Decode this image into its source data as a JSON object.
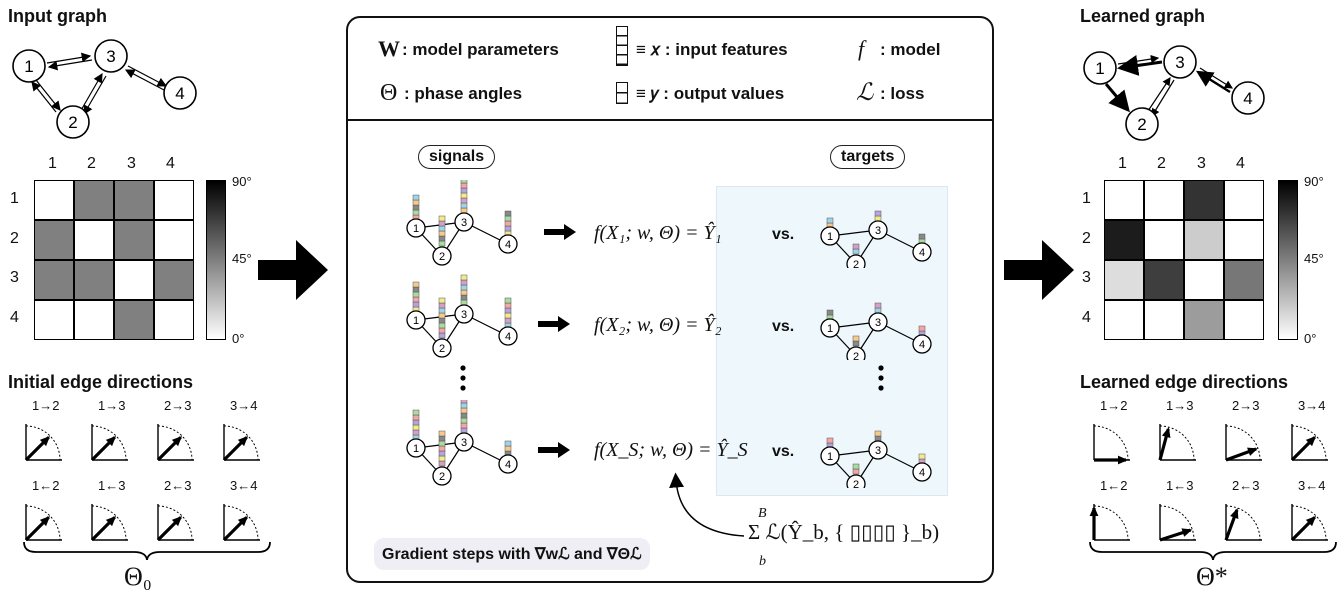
{
  "left": {
    "input_graph_title": "Input graph",
    "edges_title": "Initial edge directions",
    "theta_label": "Θ₀"
  },
  "right": {
    "learned_graph_title": "Learned graph",
    "edges_title": "Learned edge directions",
    "theta_label": "Θ*"
  },
  "node_labels": [
    "1",
    "2",
    "3",
    "4"
  ],
  "matrix_ticks": [
    "1",
    "2",
    "3",
    "4"
  ],
  "colorbar": {
    "max": "90°",
    "mid": "45°",
    "min": "0°"
  },
  "input_matrix_deg": [
    [
      0,
      45,
      45,
      0
    ],
    [
      45,
      0,
      45,
      0
    ],
    [
      45,
      45,
      0,
      45
    ],
    [
      0,
      0,
      45,
      0
    ]
  ],
  "learned_matrix_deg": [
    [
      0,
      0,
      72,
      0
    ],
    [
      80,
      0,
      18,
      0
    ],
    [
      12,
      68,
      0,
      48
    ],
    [
      0,
      0,
      35,
      0
    ]
  ],
  "initial_directions": {
    "top_labels": [
      "1→2",
      "1→3",
      "2→3",
      "3→4"
    ],
    "bottom_labels": [
      "1←2",
      "1←3",
      "2←3",
      "3←4"
    ],
    "top_angles_deg": [
      45,
      45,
      45,
      45
    ],
    "bottom_angles_deg": [
      45,
      45,
      45,
      45
    ]
  },
  "learned_directions": {
    "top_labels": [
      "1→2",
      "1→3",
      "2→3",
      "3→4"
    ],
    "bottom_labels": [
      "1←2",
      "1←3",
      "2←3",
      "3←4"
    ],
    "top_angles_deg": [
      0,
      75,
      20,
      45
    ],
    "bottom_angles_deg": [
      90,
      18,
      70,
      45
    ]
  },
  "legend": {
    "w_symbol": "W",
    "w_text": ": model parameters",
    "x_text": "≡ 𝑥 : input features",
    "f_symbol": "f",
    "f_text": ": model",
    "theta_symbol": "Θ",
    "theta_text": ": phase angles",
    "y_text": "≡ 𝑦 : output values",
    "l_symbol": "ℒ",
    "l_text": ": loss"
  },
  "center": {
    "signals": "signals",
    "targets": "targets",
    "formulas": [
      "f(X₁; w, Θ) = Ŷ₁",
      "f(X₂; w, Θ) = Ŷ₂",
      "f(X_S; w, Θ) = Ŷ_S"
    ],
    "vs": "vs.",
    "loss_sum": "Σ ℒ(Ŷ_b, { ▯▯▯▯ }_b)",
    "sum_upper": "B",
    "sum_lower": "b",
    "gradient": "Gradient steps with ∇wℒ and ∇Θℒ"
  },
  "colors": {
    "target_bg": "#eef7fb",
    "feature_palette": [
      "#f4a6a6",
      "#f7c98a",
      "#f3ea8a",
      "#a8dca0",
      "#9fd3e8",
      "#b6a3dd",
      "#888888",
      "#d3a0c8"
    ]
  }
}
